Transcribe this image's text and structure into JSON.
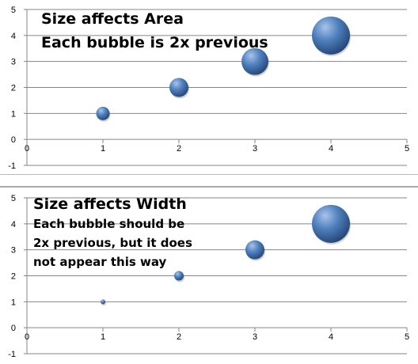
{
  "colors": {
    "bubble_light": "#a9c4ea",
    "bubble_mid": "#4f81bd",
    "bubble_dark": "#1f3f72",
    "gridline": "#868686",
    "axis": "#868686",
    "tick_text": "#000000"
  },
  "chart_data": [
    {
      "type": "scatter",
      "subtype": "bubble",
      "annotations": [
        "Size affects Area",
        "Each bubble is 2x previous"
      ],
      "x": [
        1,
        2,
        3,
        4
      ],
      "y": [
        1,
        2,
        3,
        4
      ],
      "size": [
        1,
        2,
        4,
        8
      ],
      "size_represents": "area",
      "xlim": [
        0,
        5
      ],
      "ylim": [
        -1,
        5
      ],
      "xticks": [
        "0",
        "1",
        "2",
        "3",
        "4",
        "5"
      ],
      "yticks": [
        "-1",
        "0",
        "1",
        "2",
        "3",
        "4",
        "5"
      ],
      "grid": "horizontal",
      "legend": "none"
    },
    {
      "type": "scatter",
      "subtype": "bubble",
      "annotations": [
        "Size affects Width",
        "Each bubble should be",
        "2x previous, but it does",
        "not appear this way"
      ],
      "x": [
        1,
        2,
        3,
        4
      ],
      "y": [
        1,
        2,
        3,
        4
      ],
      "size": [
        1,
        2,
        4,
        8
      ],
      "size_represents": "width",
      "xlim": [
        0,
        5
      ],
      "ylim": [
        -1,
        5
      ],
      "xticks": [
        "0",
        "1",
        "2",
        "3",
        "4",
        "5"
      ],
      "yticks": [
        "-1",
        "0",
        "1",
        "2",
        "3",
        "4",
        "5"
      ],
      "grid": "horizontal",
      "legend": "none"
    }
  ]
}
